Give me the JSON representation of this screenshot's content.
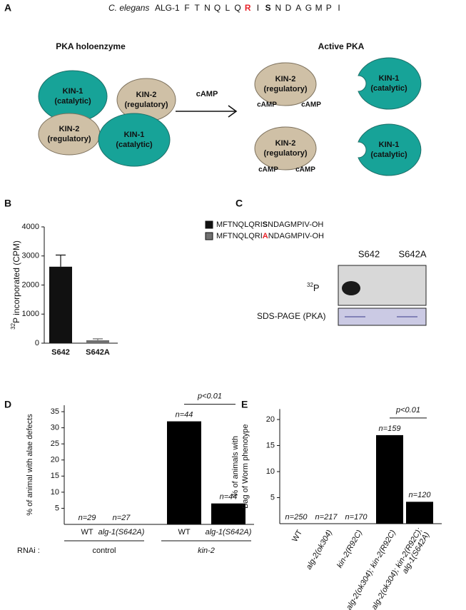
{
  "panel_labels": [
    "A",
    "B",
    "C",
    "D",
    "E"
  ],
  "diagram": {
    "species": "C. elegans",
    "protein": "ALG-1",
    "residues": [
      {
        "letter": "F"
      },
      {
        "letter": "T"
      },
      {
        "letter": "N"
      },
      {
        "letter": "Q"
      },
      {
        "letter": "L"
      },
      {
        "letter": "Q"
      },
      {
        "letter": "R",
        "color": "#e8232a",
        "bold": true
      },
      {
        "letter": "I"
      },
      {
        "letter": "S",
        "bold": true
      },
      {
        "letter": "N"
      },
      {
        "letter": "D"
      },
      {
        "letter": "A"
      },
      {
        "letter": "G"
      },
      {
        "letter": "M"
      },
      {
        "letter": "P"
      },
      {
        "letter": "I"
      }
    ],
    "headings": [
      "PKA holoenzyme",
      "Active PKA"
    ],
    "arrow_label": "cAMP",
    "nodes": [
      {
        "lines": [
          "KIN-1",
          "(catalytic)"
        ]
      },
      {
        "lines": [
          "KIN-2",
          "(regulatory)"
        ]
      },
      {
        "lines": [
          "KIN-2",
          "(regulatory)"
        ]
      },
      {
        "lines": [
          "KIN-1",
          "(catalytic)"
        ]
      },
      {
        "lines": [
          "KIN-2",
          "(regulatory)"
        ]
      },
      {
        "lines": [
          "KIN-1",
          "(catalytic)"
        ]
      },
      {
        "lines": [
          "KIN-2",
          "(regulatory)"
        ]
      },
      {
        "lines": [
          "KIN-1",
          "(catalytic)"
        ]
      }
    ],
    "camp_labels": [
      "cAMP",
      "cAMP",
      "cAMP",
      "cAMP"
    ]
  },
  "blot": {
    "lanes": [
      "S642",
      "S642A"
    ],
    "rows": [
      {
        "sup": "32",
        "label": "P"
      },
      {
        "label": "SDS-PAGE (PKA)"
      }
    ]
  },
  "chart_data": [
    {
      "type": "bar",
      "y_label_sup": "32",
      "y_label": "P incorporated (CPM)",
      "categories": [
        "S642",
        "S642A"
      ],
      "series": [
        {
          "name": "MFTNQLQRISNDAGMPIV-OH",
          "highlight": "S",
          "color": "#111111",
          "values": [
            2630,
            null
          ],
          "errors": [
            400,
            null
          ]
        },
        {
          "name": "MFTNQLQRIANDAGMPIV-OH",
          "highlight": "A",
          "highlight_color": "#e8232a",
          "color": "#707070",
          "values": [
            null,
            100
          ],
          "errors": [
            null,
            50
          ]
        }
      ],
      "ylim": [
        0,
        4000
      ],
      "yticks": [
        0,
        1000,
        2000,
        3000,
        4000
      ]
    },
    {
      "type": "bar",
      "y_label": [
        "% of animal with alae defects"
      ],
      "categories": [
        "WT",
        "alg-1(S642A)",
        "WT",
        "alg-1(S642A)"
      ],
      "values": [
        0,
        0,
        32,
        6.5
      ],
      "n_labels": [
        "n=29",
        "n=27",
        "n=44",
        "n=44"
      ],
      "color": "#000000",
      "group_prefix": "RNAi :",
      "groups": [
        "control",
        "kin-2"
      ],
      "annotation": "p<0.01",
      "ylim": [
        0,
        37
      ],
      "yticks": [
        5,
        10,
        15,
        20,
        25,
        30,
        35
      ]
    },
    {
      "type": "bar",
      "y_label": [
        "% of animals with",
        "Bag of Worm phenotype"
      ],
      "categories": [
        "WT",
        "alg-2(ok304)",
        "kin-2(R92C)",
        "alg-2(ok304); kin-2(R92C)",
        "alg-2(ok304); kin-2(R92C);\nalg-1(S642A)"
      ],
      "values": [
        0,
        0,
        0,
        17,
        4.2
      ],
      "n_labels": [
        "n=250",
        "n=217",
        "n=170",
        "n=159",
        "n=120"
      ],
      "color": "#000000",
      "annotation": "p<0.01",
      "ylim": [
        0,
        22
      ],
      "yticks": [
        5,
        10,
        15,
        20
      ]
    }
  ]
}
